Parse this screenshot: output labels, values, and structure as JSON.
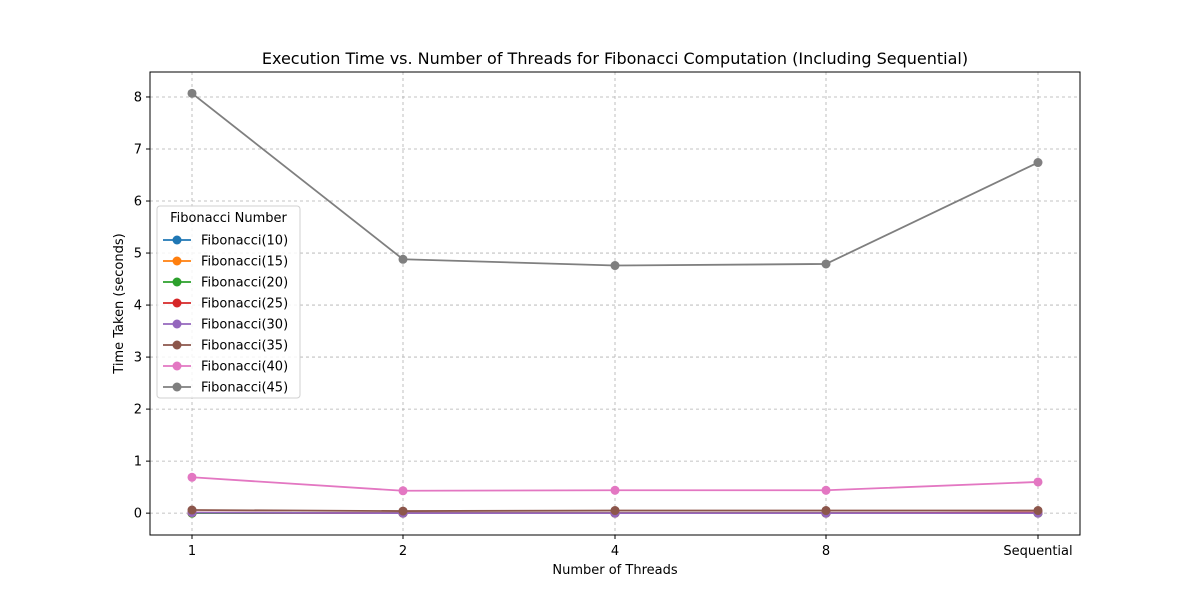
{
  "chart_data": {
    "type": "line",
    "title": "Execution Time vs. Number of Threads for Fibonacci Computation (Including Sequential)",
    "xlabel": "Number of Threads",
    "ylabel": "Time Taken (seconds)",
    "categories": [
      "1",
      "2",
      "4",
      "8",
      "Sequential"
    ],
    "ylim": [
      -0.42,
      8.48
    ],
    "yticks": [
      0,
      1,
      2,
      3,
      4,
      5,
      6,
      7,
      8
    ],
    "grid": true,
    "grid_style": "dashed",
    "legend": {
      "title": "Fibonacci Number",
      "placement": "center-left"
    },
    "series": [
      {
        "name": "Fibonacci(10)",
        "color": "#1f77b4",
        "values": [
          0.0,
          0.0,
          0.0,
          0.0,
          0.0
        ]
      },
      {
        "name": "Fibonacci(15)",
        "color": "#ff7f0e",
        "values": [
          0.0,
          0.0,
          0.0,
          0.0,
          0.0
        ]
      },
      {
        "name": "Fibonacci(20)",
        "color": "#2ca02c",
        "values": [
          0.0,
          0.0,
          0.0,
          0.0,
          0.0
        ]
      },
      {
        "name": "Fibonacci(25)",
        "color": "#d62728",
        "values": [
          0.01,
          0.0,
          0.0,
          0.0,
          0.01
        ]
      },
      {
        "name": "Fibonacci(30)",
        "color": "#9467bd",
        "values": [
          0.01,
          0.0,
          0.0,
          0.0,
          0.0
        ]
      },
      {
        "name": "Fibonacci(35)",
        "color": "#8c564b",
        "values": [
          0.06,
          0.04,
          0.05,
          0.05,
          0.05
        ]
      },
      {
        "name": "Fibonacci(40)",
        "color": "#e377c2",
        "values": [
          0.69,
          0.43,
          0.44,
          0.44,
          0.6
        ]
      },
      {
        "name": "Fibonacci(45)",
        "color": "#7f7f7f",
        "values": [
          8.07,
          4.88,
          4.76,
          4.79,
          6.74
        ]
      }
    ]
  }
}
